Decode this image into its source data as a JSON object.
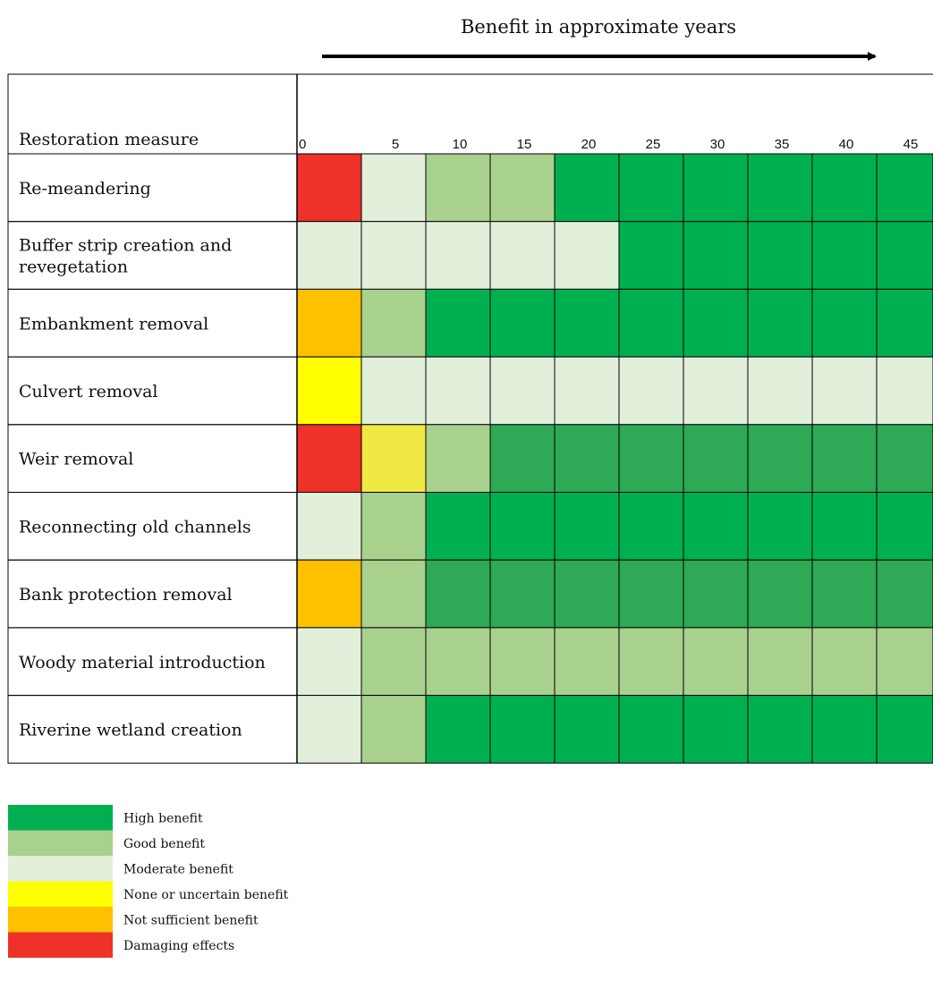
{
  "chart_data": {
    "type": "heatmap",
    "title": "Benefit in approximate years",
    "row_header": "Restoration measure",
    "x": [
      "0",
      "5",
      "10",
      "15",
      "20",
      "25",
      "30",
      "35",
      "40",
      "45"
    ],
    "rows": [
      {
        "label": "Re-meandering",
        "values": [
          "damaging",
          "moderate",
          "good",
          "good",
          "high",
          "high",
          "high",
          "high",
          "high",
          "high"
        ]
      },
      {
        "label": "Buffer strip creation and revegetation",
        "values": [
          "moderate",
          "moderate",
          "moderate",
          "moderate",
          "moderate",
          "high",
          "high",
          "high",
          "high",
          "high"
        ]
      },
      {
        "label": "Embankment removal",
        "values": [
          "not_sufficient",
          "good",
          "high",
          "high",
          "high",
          "high",
          "high",
          "high",
          "high",
          "high"
        ]
      },
      {
        "label": "Culvert removal",
        "values": [
          "none_uncertain",
          "moderate",
          "moderate",
          "moderate",
          "moderate",
          "moderate",
          "moderate",
          "moderate",
          "moderate",
          "moderate"
        ]
      },
      {
        "label": "Weir removal",
        "values": [
          "damaging",
          "none_uncertain_light",
          "good",
          "high_dark",
          "high_dark",
          "high_dark",
          "high_dark",
          "high_dark",
          "high_dark",
          "high_dark"
        ]
      },
      {
        "label": "Reconnecting old channels",
        "values": [
          "moderate",
          "good",
          "high",
          "high",
          "high",
          "high",
          "high",
          "high",
          "high",
          "high"
        ]
      },
      {
        "label": "Bank protection removal",
        "values": [
          "not_sufficient",
          "good",
          "high_dark",
          "high_dark",
          "high_dark",
          "high_dark",
          "high_dark",
          "high_dark",
          "high_dark",
          "high_dark"
        ]
      },
      {
        "label": "Woody material introduction",
        "values": [
          "moderate",
          "good",
          "good",
          "good",
          "good",
          "good",
          "good",
          "good",
          "good",
          "good"
        ]
      },
      {
        "label": "Riverine wetland creation",
        "values": [
          "moderate",
          "good",
          "high",
          "high",
          "high",
          "high",
          "high",
          "high",
          "high",
          "high"
        ]
      }
    ],
    "colors": {
      "high": "#00b050",
      "high_dark": "#2ea955",
      "good": "#a9d18e",
      "moderate": "#e2efda",
      "none_uncertain": "#ffff00",
      "none_uncertain_light": "#f0e844",
      "not_sufficient": "#ffc000",
      "damaging": "#ee3129"
    },
    "legend": [
      {
        "key": "high",
        "label": "High benefit"
      },
      {
        "key": "good",
        "label": "Good benefit"
      },
      {
        "key": "moderate",
        "label": "Moderate benefit"
      },
      {
        "key": "none_uncertain",
        "label": "None or uncertain benefit"
      },
      {
        "key": "not_sufficient",
        "label": "Not sufficient benefit"
      },
      {
        "key": "damaging",
        "label": "Damaging effects"
      }
    ]
  }
}
